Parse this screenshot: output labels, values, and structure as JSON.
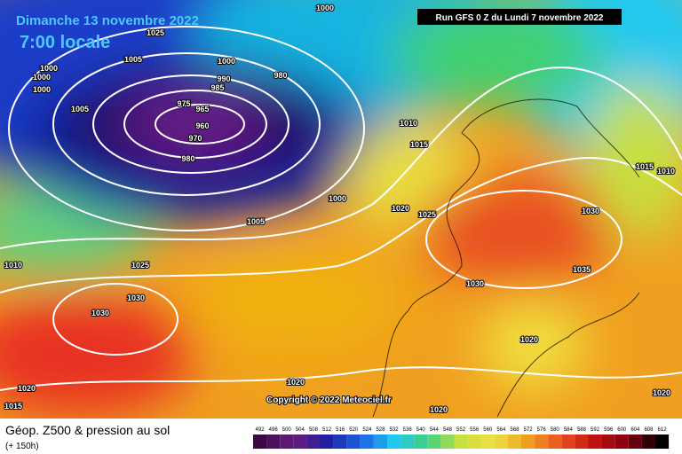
{
  "header": {
    "date": "Dimanche 13 novembre 2022",
    "time": "7:00 locale",
    "run": "Run GFS 0 Z du Lundi 7 novembre 2022"
  },
  "copyright": "Copyright © 2022 Meteociel.fr",
  "footer": {
    "title": "Géop. Z500 & pression au sol",
    "lead": "(+ 150h)"
  },
  "colorbar": {
    "ticks": [
      492,
      496,
      500,
      504,
      508,
      512,
      516,
      520,
      524,
      528,
      532,
      536,
      540,
      544,
      548,
      552,
      556,
      560,
      564,
      568,
      572,
      576,
      580,
      584,
      588,
      592,
      596,
      600,
      604,
      608,
      612
    ]
  },
  "isobars": [
    1025,
    1000,
    1005,
    1000,
    990,
    985,
    980,
    975,
    965,
    960,
    970,
    980,
    1005,
    1000,
    1000,
    1000,
    1010,
    1015,
    1000,
    1020,
    1025,
    1005,
    1030,
    1015,
    1010,
    1035,
    1025,
    1030,
    1030,
    1030,
    1010,
    1020,
    1020,
    1020,
    1015,
    1020,
    1020
  ]
}
